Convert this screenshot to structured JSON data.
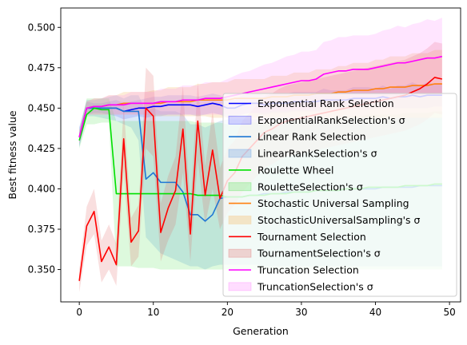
{
  "chart_data": {
    "type": "line",
    "title": "",
    "xlabel": "Generation",
    "ylabel": "Best fitness value",
    "xlim": [
      -2.5,
      51.5
    ],
    "ylim": [
      0.33,
      0.512
    ],
    "xticks": [
      0,
      10,
      20,
      30,
      40,
      50
    ],
    "yticks": [
      0.35,
      0.375,
      0.4,
      0.425,
      0.45,
      0.475,
      0.5
    ],
    "xtick_labels": [
      "0",
      "10",
      "20",
      "30",
      "40",
      "50"
    ],
    "ytick_labels": [
      "0.350",
      "0.375",
      "0.400",
      "0.425",
      "0.450",
      "0.475",
      "0.500"
    ],
    "grid": false,
    "legend_position": "lower-right",
    "x": [
      0,
      1,
      2,
      3,
      4,
      5,
      6,
      7,
      8,
      9,
      10,
      11,
      12,
      13,
      14,
      15,
      16,
      17,
      18,
      19,
      20,
      21,
      22,
      23,
      24,
      25,
      26,
      27,
      28,
      29,
      30,
      31,
      32,
      33,
      34,
      35,
      36,
      37,
      38,
      39,
      40,
      41,
      42,
      43,
      44,
      45,
      46,
      47,
      48,
      49
    ],
    "series": [
      {
        "name": "Exponential Rank Selection",
        "band_name": "ExponentialRankSelection's σ",
        "color": "#0000ff",
        "band_color": "#0000ff",
        "band_opacity": 0.13,
        "values": [
          0.432,
          0.45,
          0.45,
          0.45,
          0.45,
          0.45,
          0.448,
          0.449,
          0.45,
          0.45,
          0.451,
          0.451,
          0.452,
          0.452,
          0.452,
          0.452,
          0.451,
          0.452,
          0.453,
          0.452,
          0.45,
          0.45,
          0.452,
          0.453,
          0.453,
          0.452,
          0.453,
          0.453,
          0.453,
          0.454,
          0.454,
          0.454,
          0.454,
          0.455,
          0.455,
          0.455,
          0.455,
          0.456,
          0.456,
          0.456,
          0.456,
          0.457,
          0.456,
          0.457,
          0.457,
          0.458,
          0.457,
          0.458,
          0.458,
          0.458
        ],
        "lower": [
          0.426,
          0.446,
          0.447,
          0.447,
          0.446,
          0.445,
          0.443,
          0.444,
          0.445,
          0.444,
          0.445,
          0.445,
          0.446,
          0.446,
          0.446,
          0.446,
          0.445,
          0.446,
          0.447,
          0.446,
          0.444,
          0.445,
          0.446,
          0.447,
          0.447,
          0.446,
          0.447,
          0.447,
          0.447,
          0.448,
          0.448,
          0.448,
          0.448,
          0.448,
          0.449,
          0.449,
          0.449,
          0.449,
          0.449,
          0.449,
          0.45,
          0.45,
          0.45,
          0.45,
          0.45,
          0.45,
          0.45,
          0.45,
          0.451,
          0.451
        ],
        "upper": [
          0.438,
          0.454,
          0.453,
          0.453,
          0.454,
          0.455,
          0.453,
          0.454,
          0.455,
          0.456,
          0.457,
          0.457,
          0.458,
          0.458,
          0.458,
          0.458,
          0.457,
          0.458,
          0.459,
          0.458,
          0.456,
          0.455,
          0.458,
          0.459,
          0.459,
          0.458,
          0.459,
          0.459,
          0.459,
          0.46,
          0.46,
          0.46,
          0.46,
          0.462,
          0.461,
          0.461,
          0.461,
          0.463,
          0.463,
          0.463,
          0.462,
          0.464,
          0.462,
          0.464,
          0.464,
          0.466,
          0.464,
          0.466,
          0.465,
          0.465
        ]
      },
      {
        "name": "Linear Rank Selection",
        "band_name": "LinearRankSelection's σ",
        "color": "#1f77d4",
        "band_color": "#4a90e2",
        "band_opacity": 0.2,
        "values": [
          0.432,
          0.45,
          0.45,
          0.45,
          0.45,
          0.45,
          0.448,
          0.448,
          0.448,
          0.406,
          0.41,
          0.404,
          0.404,
          0.404,
          0.398,
          0.384,
          0.384,
          0.38,
          0.384,
          0.394,
          0.395,
          0.395,
          0.395,
          0.396,
          0.396,
          0.397,
          0.397,
          0.397,
          0.398,
          0.398,
          0.398,
          0.398,
          0.399,
          0.399,
          0.399,
          0.399,
          0.4,
          0.4,
          0.4,
          0.4,
          0.4,
          0.401,
          0.401,
          0.401,
          0.401,
          0.401,
          0.402,
          0.402,
          0.402,
          0.402
        ],
        "lower": [
          0.426,
          0.445,
          0.445,
          0.444,
          0.443,
          0.442,
          0.44,
          0.438,
          0.43,
          0.37,
          0.365,
          0.36,
          0.358,
          0.356,
          0.354,
          0.352,
          0.352,
          0.35,
          0.352,
          0.353,
          0.353,
          0.353,
          0.353,
          0.353,
          0.353,
          0.352,
          0.352,
          0.352,
          0.352,
          0.352,
          0.352,
          0.352,
          0.352,
          0.352,
          0.352,
          0.352,
          0.352,
          0.352,
          0.352,
          0.352,
          0.352,
          0.352,
          0.352,
          0.352,
          0.352,
          0.352,
          0.352,
          0.352,
          0.352,
          0.352
        ],
        "upper": [
          0.438,
          0.455,
          0.455,
          0.456,
          0.457,
          0.458,
          0.456,
          0.458,
          0.458,
          0.448,
          0.45,
          0.448,
          0.448,
          0.448,
          0.446,
          0.44,
          0.44,
          0.438,
          0.44,
          0.442,
          0.443,
          0.443,
          0.443,
          0.443,
          0.443,
          0.444,
          0.444,
          0.444,
          0.444,
          0.444,
          0.444,
          0.444,
          0.444,
          0.444,
          0.444,
          0.444,
          0.444,
          0.444,
          0.444,
          0.444,
          0.444,
          0.444,
          0.444,
          0.444,
          0.444,
          0.444,
          0.444,
          0.444,
          0.444,
          0.444
        ]
      },
      {
        "name": "Roulette Wheel",
        "band_name": "RouletteSelection's σ",
        "color": "#00e000",
        "band_color": "#33dd33",
        "band_opacity": 0.17,
        "values": [
          0.43,
          0.446,
          0.45,
          0.449,
          0.449,
          0.397,
          0.397,
          0.397,
          0.397,
          0.397,
          0.397,
          0.397,
          0.397,
          0.397,
          0.397,
          0.397,
          0.396,
          0.396,
          0.396,
          0.396,
          0.395,
          0.395,
          0.395,
          0.396,
          0.396,
          0.396,
          0.397,
          0.397,
          0.397,
          0.398,
          0.398,
          0.398,
          0.399,
          0.399,
          0.399,
          0.399,
          0.4,
          0.4,
          0.4,
          0.401,
          0.401,
          0.401,
          0.401,
          0.401,
          0.402,
          0.402,
          0.402,
          0.402,
          0.403,
          0.403
        ],
        "lower": [
          0.425,
          0.44,
          0.44,
          0.441,
          0.441,
          0.352,
          0.352,
          0.352,
          0.351,
          0.351,
          0.351,
          0.35,
          0.35,
          0.35,
          0.35,
          0.35,
          0.35,
          0.35,
          0.35,
          0.35,
          0.35,
          0.35,
          0.35,
          0.35,
          0.35,
          0.35,
          0.35,
          0.35,
          0.35,
          0.35,
          0.35,
          0.35,
          0.35,
          0.35,
          0.35,
          0.35,
          0.35,
          0.35,
          0.35,
          0.35,
          0.35,
          0.35,
          0.35,
          0.35,
          0.35,
          0.35,
          0.35,
          0.35,
          0.35,
          0.35
        ],
        "upper": [
          0.435,
          0.456,
          0.456,
          0.456,
          0.456,
          0.442,
          0.442,
          0.442,
          0.442,
          0.442,
          0.442,
          0.442,
          0.442,
          0.442,
          0.442,
          0.442,
          0.441,
          0.441,
          0.441,
          0.441,
          0.44,
          0.44,
          0.44,
          0.441,
          0.441,
          0.441,
          0.442,
          0.442,
          0.442,
          0.443,
          0.443,
          0.443,
          0.444,
          0.444,
          0.444,
          0.444,
          0.445,
          0.445,
          0.445,
          0.446,
          0.446,
          0.446,
          0.446,
          0.446,
          0.447,
          0.447,
          0.447,
          0.447,
          0.448,
          0.448
        ]
      },
      {
        "name": "Stochastic Universal Sampling",
        "band_name": "StochasticUniversalSampling's σ",
        "color": "#ff7f0e",
        "band_color": "#f5c27a",
        "band_opacity": 0.3,
        "values": [
          0.432,
          0.45,
          0.451,
          0.451,
          0.452,
          0.452,
          0.453,
          0.453,
          0.453,
          0.453,
          0.453,
          0.453,
          0.454,
          0.454,
          0.454,
          0.454,
          0.455,
          0.455,
          0.455,
          0.455,
          0.455,
          0.456,
          0.456,
          0.456,
          0.456,
          0.456,
          0.457,
          0.457,
          0.457,
          0.458,
          0.458,
          0.458,
          0.459,
          0.459,
          0.459,
          0.46,
          0.46,
          0.461,
          0.461,
          0.461,
          0.462,
          0.462,
          0.463,
          0.463,
          0.463,
          0.464,
          0.464,
          0.464,
          0.465,
          0.465
        ],
        "lower": [
          0.428,
          0.446,
          0.446,
          0.446,
          0.446,
          0.446,
          0.446,
          0.446,
          0.446,
          0.446,
          0.445,
          0.445,
          0.445,
          0.445,
          0.445,
          0.445,
          0.445,
          0.445,
          0.444,
          0.444,
          0.444,
          0.444,
          0.444,
          0.444,
          0.444,
          0.444,
          0.444,
          0.444,
          0.444,
          0.444,
          0.444,
          0.444,
          0.444,
          0.444,
          0.444,
          0.444,
          0.444,
          0.444,
          0.444,
          0.444,
          0.444,
          0.444,
          0.444,
          0.444,
          0.444,
          0.444,
          0.444,
          0.444,
          0.444,
          0.444
        ],
        "upper": [
          0.436,
          0.454,
          0.456,
          0.456,
          0.458,
          0.458,
          0.46,
          0.46,
          0.46,
          0.46,
          0.461,
          0.461,
          0.463,
          0.463,
          0.463,
          0.463,
          0.465,
          0.465,
          0.466,
          0.466,
          0.466,
          0.468,
          0.468,
          0.468,
          0.468,
          0.468,
          0.47,
          0.47,
          0.47,
          0.472,
          0.472,
          0.472,
          0.474,
          0.474,
          0.474,
          0.476,
          0.476,
          0.478,
          0.478,
          0.478,
          0.48,
          0.48,
          0.482,
          0.482,
          0.482,
          0.484,
          0.484,
          0.484,
          0.486,
          0.486
        ]
      },
      {
        "name": "Tournament Selection",
        "band_name": "TournamentSelection's σ",
        "color": "#ff0000",
        "band_color": "#e06060",
        "band_opacity": 0.2,
        "values": [
          0.343,
          0.377,
          0.386,
          0.355,
          0.364,
          0.353,
          0.431,
          0.367,
          0.374,
          0.45,
          0.445,
          0.373,
          0.388,
          0.399,
          0.437,
          0.372,
          0.442,
          0.396,
          0.424,
          0.394,
          0.405,
          0.41,
          0.42,
          0.425,
          0.43,
          0.435,
          0.437,
          0.44,
          0.442,
          0.443,
          0.444,
          0.445,
          0.446,
          0.447,
          0.448,
          0.449,
          0.45,
          0.451,
          0.452,
          0.453,
          0.454,
          0.455,
          0.456,
          0.457,
          0.458,
          0.46,
          0.462,
          0.465,
          0.469,
          0.468
        ],
        "lower": [
          0.336,
          0.365,
          0.372,
          0.342,
          0.35,
          0.34,
          0.41,
          0.352,
          0.358,
          0.425,
          0.42,
          0.355,
          0.368,
          0.378,
          0.41,
          0.355,
          0.418,
          0.378,
          0.4,
          0.375,
          0.385,
          0.39,
          0.398,
          0.403,
          0.408,
          0.413,
          0.415,
          0.418,
          0.42,
          0.421,
          0.422,
          0.423,
          0.424,
          0.425,
          0.426,
          0.427,
          0.428,
          0.429,
          0.43,
          0.431,
          0.432,
          0.433,
          0.434,
          0.435,
          0.436,
          0.438,
          0.44,
          0.443,
          0.447,
          0.446
        ],
        "upper": [
          0.35,
          0.389,
          0.4,
          0.368,
          0.378,
          0.366,
          0.452,
          0.382,
          0.39,
          0.475,
          0.47,
          0.391,
          0.408,
          0.42,
          0.464,
          0.389,
          0.466,
          0.414,
          0.448,
          0.413,
          0.425,
          0.43,
          0.442,
          0.447,
          0.452,
          0.457,
          0.459,
          0.462,
          0.464,
          0.465,
          0.466,
          0.467,
          0.468,
          0.469,
          0.47,
          0.471,
          0.472,
          0.473,
          0.474,
          0.475,
          0.476,
          0.477,
          0.478,
          0.479,
          0.48,
          0.482,
          0.484,
          0.487,
          0.491,
          0.49
        ]
      },
      {
        "name": "Truncation Selection",
        "band_name": "TruncationSelection's σ",
        "color": "#ff00ff",
        "band_color": "#ff66ff",
        "band_opacity": 0.17,
        "values": [
          0.432,
          0.45,
          0.451,
          0.451,
          0.452,
          0.452,
          0.452,
          0.453,
          0.453,
          0.453,
          0.453,
          0.454,
          0.454,
          0.454,
          0.455,
          0.455,
          0.455,
          0.456,
          0.456,
          0.456,
          0.457,
          0.458,
          0.459,
          0.46,
          0.461,
          0.462,
          0.463,
          0.464,
          0.465,
          0.466,
          0.467,
          0.467,
          0.468,
          0.471,
          0.472,
          0.473,
          0.473,
          0.474,
          0.474,
          0.474,
          0.475,
          0.476,
          0.477,
          0.478,
          0.478,
          0.479,
          0.48,
          0.481,
          0.481,
          0.482
        ],
        "lower": [
          0.428,
          0.446,
          0.446,
          0.446,
          0.446,
          0.446,
          0.446,
          0.446,
          0.446,
          0.446,
          0.446,
          0.446,
          0.446,
          0.446,
          0.446,
          0.446,
          0.446,
          0.446,
          0.446,
          0.446,
          0.446,
          0.446,
          0.446,
          0.447,
          0.447,
          0.447,
          0.448,
          0.448,
          0.448,
          0.449,
          0.449,
          0.449,
          0.45,
          0.451,
          0.452,
          0.452,
          0.452,
          0.453,
          0.453,
          0.453,
          0.454,
          0.454,
          0.455,
          0.455,
          0.456,
          0.456,
          0.457,
          0.457,
          0.458,
          0.458
        ],
        "upper": [
          0.436,
          0.454,
          0.456,
          0.456,
          0.458,
          0.458,
          0.458,
          0.46,
          0.46,
          0.46,
          0.46,
          0.462,
          0.462,
          0.462,
          0.464,
          0.464,
          0.464,
          0.466,
          0.466,
          0.466,
          0.468,
          0.47,
          0.472,
          0.473,
          0.475,
          0.477,
          0.478,
          0.48,
          0.482,
          0.483,
          0.485,
          0.485,
          0.486,
          0.491,
          0.492,
          0.494,
          0.494,
          0.495,
          0.495,
          0.495,
          0.496,
          0.498,
          0.499,
          0.501,
          0.5,
          0.502,
          0.503,
          0.505,
          0.504,
          0.506
        ]
      }
    ]
  }
}
